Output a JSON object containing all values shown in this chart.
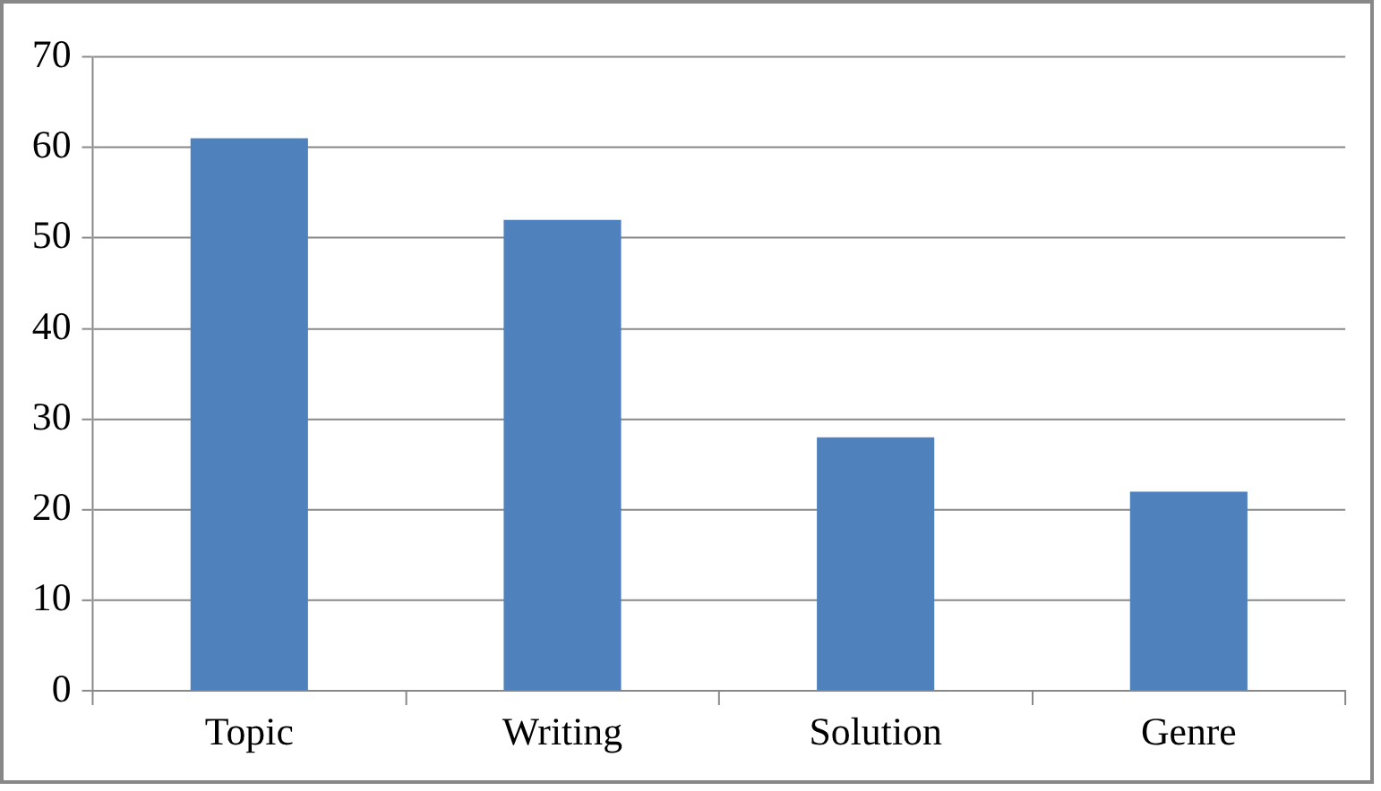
{
  "chart_data": {
    "type": "bar",
    "categories": [
      "Topic",
      "Writing",
      "Solution",
      "Genre"
    ],
    "values": [
      61,
      52,
      28,
      22
    ],
    "color": "#4f81bd",
    "ylim": [
      0,
      70
    ],
    "yticks": [
      0,
      10,
      20,
      30,
      40,
      50,
      60,
      70
    ],
    "grid": "y",
    "legend": false
  }
}
